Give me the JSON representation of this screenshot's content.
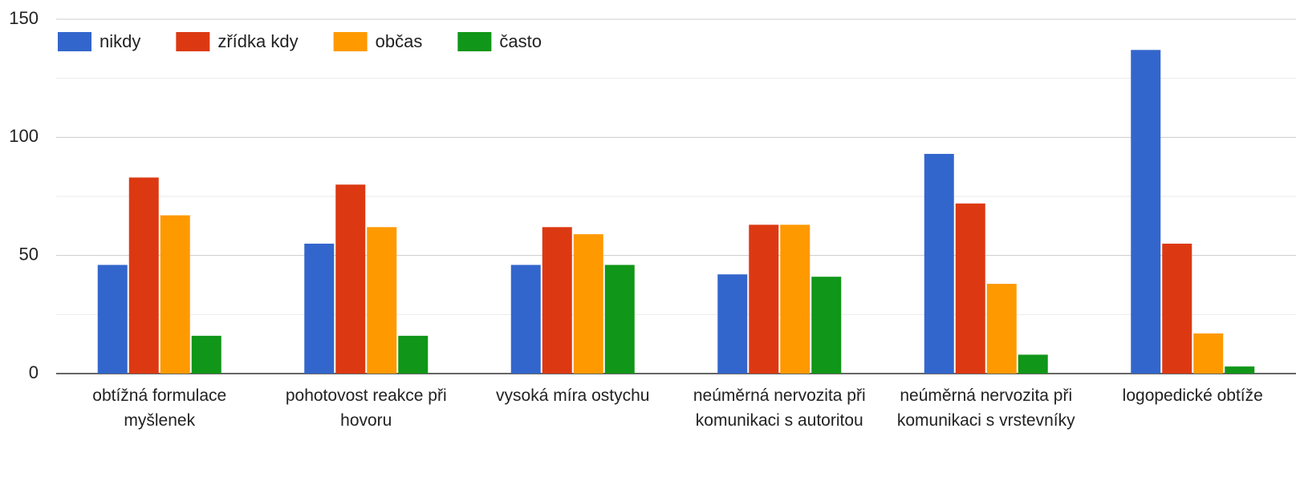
{
  "chart_data": {
    "type": "bar",
    "categories": [
      "obtížná formulace myšlenek",
      "pohotovost reakce při hovoru",
      "vysoká míra ostychu",
      "neúměrná nervozita při komunikaci s autoritou",
      "neúměrná nervozita při komunikaci s vrstevníky",
      "logopedické obtíže"
    ],
    "series": [
      {
        "name": "nikdy",
        "color": "#3366cc",
        "values": [
          46,
          55,
          46,
          42,
          93,
          137
        ]
      },
      {
        "name": "zřídka kdy",
        "color": "#dc3912",
        "values": [
          83,
          80,
          62,
          63,
          72,
          55
        ]
      },
      {
        "name": "občas",
        "color": "#ff9900",
        "values": [
          67,
          62,
          59,
          63,
          38,
          17
        ]
      },
      {
        "name": "často",
        "color": "#109618",
        "values": [
          16,
          16,
          46,
          41,
          8,
          3
        ]
      }
    ],
    "ylim": [
      0,
      150
    ],
    "yticks": [
      0,
      50,
      100,
      150
    ],
    "minor_yticks": [
      25,
      75,
      125
    ],
    "grid": true,
    "legend": "top"
  }
}
